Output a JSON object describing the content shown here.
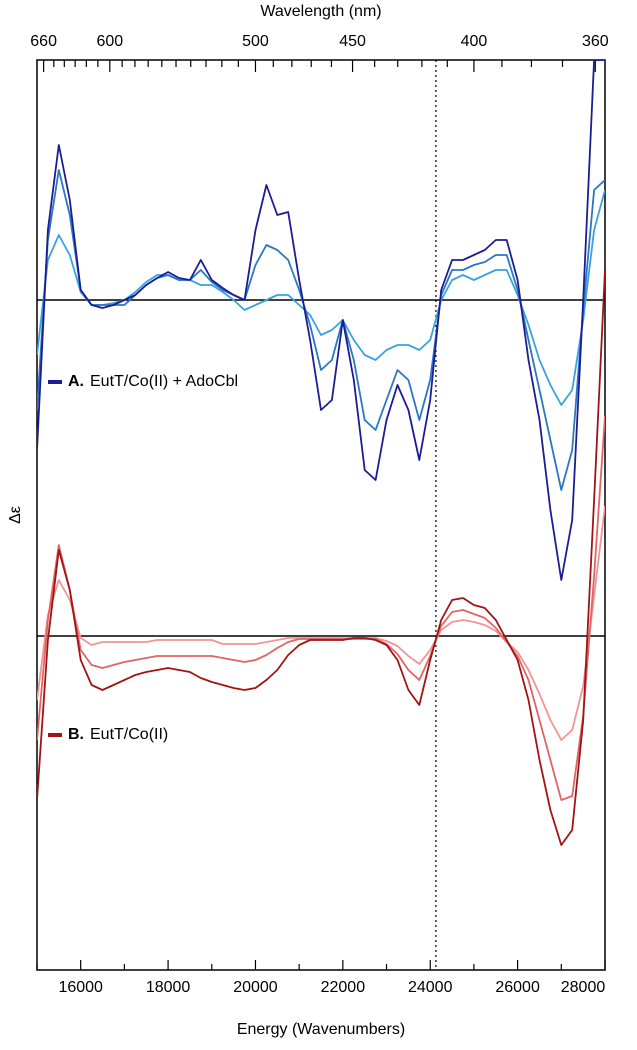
{
  "chart_data": [
    {
      "type": "line",
      "x_label": "Energy (Wavenumbers)",
      "x2_label": "Wavelength (nm)",
      "y_label": "Δε",
      "xlim": [
        15000,
        28000
      ],
      "xticks": [
        16000,
        18000,
        20000,
        22000,
        24000,
        26000,
        28000
      ],
      "xminor": [
        15000,
        17000,
        19000,
        21000,
        23000,
        25000,
        27000
      ],
      "x2ticks": [
        660,
        600,
        500,
        450,
        400,
        360
      ],
      "x2minor": [
        650,
        640,
        630,
        620,
        610,
        590,
        580,
        570,
        560,
        550,
        540,
        530,
        520,
        510,
        490,
        480,
        470,
        460,
        440,
        430,
        420,
        410,
        390,
        380,
        370
      ],
      "vline": 24130,
      "ylim": [
        -67,
        24
      ],
      "legend": {
        "marker": "A.",
        "text": "EutT/Co(II) + AdoCbl",
        "color": "#1c1c96"
      },
      "x": [
        15000,
        15250,
        15500,
        15750,
        16000,
        16250,
        16500,
        16750,
        17000,
        17250,
        17500,
        17750,
        18000,
        18250,
        18500,
        18750,
        19000,
        19250,
        19500,
        19750,
        20000,
        20250,
        20500,
        20750,
        21000,
        21250,
        21500,
        21750,
        22000,
        22250,
        22500,
        22750,
        23000,
        23250,
        23500,
        23750,
        24000,
        24250,
        24500,
        24750,
        25000,
        25250,
        25500,
        25750,
        26000,
        26250,
        26500,
        26750,
        27000,
        27250,
        27500,
        27750,
        28000
      ],
      "series": [
        {
          "color": "#1c1c96",
          "values": [
            -15,
            7,
            15.5,
            10,
            1,
            -0.5,
            -0.8,
            -0.5,
            0,
            0.5,
            1.5,
            2.2,
            2.8,
            2.2,
            2,
            4,
            2,
            1.2,
            0.5,
            0,
            7,
            11.5,
            8.5,
            8.8,
            2,
            -4,
            -11,
            -10,
            -2,
            -8,
            -17,
            -18,
            -12,
            -8.5,
            -11,
            -16,
            -10,
            1,
            4,
            4,
            4.5,
            5,
            6,
            6,
            2,
            -6,
            -12,
            -21,
            -28,
            -22,
            0,
            24,
            24
          ]
        },
        {
          "color": "#2a78c4",
          "values": [
            -11,
            6,
            13,
            8.5,
            1,
            -0.5,
            -0.5,
            -0.5,
            -0.5,
            0.5,
            1.5,
            2.2,
            2.5,
            2,
            2,
            3,
            1.8,
            1,
            0.5,
            0,
            3.5,
            5.5,
            5,
            4,
            1,
            -2.5,
            -7,
            -6,
            -2,
            -6,
            -12,
            -13,
            -10,
            -7,
            -8,
            -12,
            -8,
            0.5,
            3,
            3,
            3.5,
            3.8,
            4.5,
            4.5,
            1,
            -4,
            -9,
            -14,
            -19,
            -15,
            -1,
            11,
            12
          ]
        },
        {
          "color": "#3aa2dc",
          "values": [
            -5.5,
            4,
            6.5,
            4.5,
            0.8,
            -0.5,
            -0.5,
            -0.3,
            0,
            0.8,
            1.8,
            2.5,
            2.5,
            2,
            2,
            1.5,
            1.5,
            0.8,
            0,
            -1,
            -0.5,
            0,
            0.5,
            0.5,
            -0.5,
            -1.5,
            -3.5,
            -3,
            -2,
            -4,
            -5.5,
            -6,
            -5,
            -4.5,
            -4.5,
            -5,
            -4,
            0,
            2,
            2.5,
            2,
            2.5,
            3,
            3,
            0.5,
            -2.5,
            -6,
            -8.5,
            -10.5,
            -9,
            -2,
            7,
            11
          ]
        }
      ]
    },
    {
      "type": "line",
      "ylim": [
        -33.4,
        57.6
      ],
      "legend": {
        "marker": "B.",
        "text": "EutT/Co(II)",
        "color": "#a01414"
      },
      "x": [
        15000,
        15250,
        15500,
        15750,
        16000,
        16250,
        16500,
        16750,
        17000,
        17250,
        17500,
        17750,
        18000,
        18250,
        18500,
        18750,
        19000,
        19250,
        19500,
        19750,
        20000,
        20250,
        20500,
        20750,
        21000,
        21250,
        21500,
        21750,
        22000,
        22250,
        22500,
        22750,
        23000,
        23250,
        23500,
        23750,
        24000,
        24250,
        24500,
        24750,
        25000,
        25250,
        25500,
        25750,
        26000,
        26250,
        26500,
        26750,
        27000,
        27250,
        27500,
        27750,
        28000
      ],
      "series": [
        {
          "color": "#a01414",
          "values": [
            -16.4,
            -0.4,
            8.6,
            4.6,
            -2.4,
            -4.9,
            -5.4,
            -4.9,
            -4.4,
            -3.9,
            -3.6,
            -3.4,
            -3.2,
            -3.4,
            -3.6,
            -4.2,
            -4.6,
            -4.9,
            -5.2,
            -5.4,
            -5.2,
            -4.4,
            -3.4,
            -1.9,
            -0.9,
            -0.4,
            -0.4,
            -0.4,
            -0.4,
            -0.2,
            -0.2,
            -0.4,
            -0.9,
            -2.4,
            -5.4,
            -6.9,
            -2.4,
            1.6,
            3.6,
            3.8,
            3.1,
            2.8,
            1.6,
            -0.4,
            -2.4,
            -6.4,
            -12.4,
            -17.4,
            -20.9,
            -19.4,
            -8.4,
            13.6,
            36.6
          ]
        },
        {
          "color": "#e06464",
          "values": [
            -10.4,
            1.6,
            9.1,
            4.6,
            -1.4,
            -2.9,
            -3.2,
            -2.9,
            -2.6,
            -2.4,
            -2.2,
            -2,
            -2,
            -2,
            -2,
            -2,
            -2,
            -2.2,
            -2.4,
            -2.6,
            -2.4,
            -1.9,
            -1.2,
            -0.6,
            -0.3,
            -0.3,
            -0.3,
            -0.3,
            -0.3,
            -0.3,
            -0.3,
            -0.3,
            -0.8,
            -1.8,
            -3.4,
            -4.4,
            -2,
            1,
            2.4,
            2.6,
            2.2,
            1.8,
            0.8,
            -0.6,
            -2,
            -4.4,
            -8.4,
            -12.4,
            -16.4,
            -16,
            -8,
            6,
            22
          ]
        },
        {
          "color": "#f29494",
          "values": [
            -6.4,
            2.1,
            5.6,
            3.6,
            -0.2,
            -0.9,
            -0.6,
            -0.6,
            -0.6,
            -0.6,
            -0.6,
            -0.4,
            -0.4,
            -0.4,
            -0.4,
            -0.4,
            -0.4,
            -0.8,
            -0.8,
            -0.8,
            -0.8,
            -0.6,
            -0.4,
            -0.2,
            -0.2,
            -0.2,
            -0.2,
            -0.2,
            -0.2,
            -0.2,
            -0.2,
            -0.2,
            -0.5,
            -1,
            -2,
            -2.8,
            -1.4,
            0.6,
            1.4,
            1.6,
            1.4,
            1.1,
            0.5,
            -0.6,
            -1.6,
            -3.4,
            -5.8,
            -8.4,
            -10.4,
            -9.4,
            -5,
            4,
            13
          ]
        }
      ]
    }
  ]
}
